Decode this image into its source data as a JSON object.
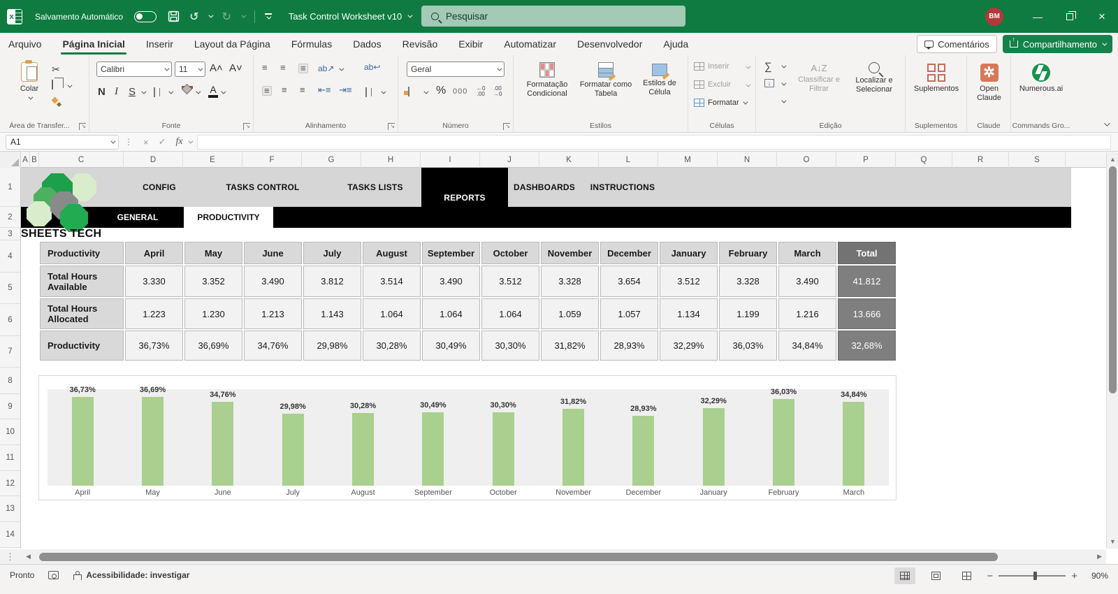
{
  "titlebar": {
    "autosave_label": "Salvamento Automático",
    "doc_title": "Task Control Worksheet v10",
    "search_placeholder": "Pesquisar",
    "avatar_initials": "BM"
  },
  "menubar": {
    "tabs": [
      "Arquivo",
      "Página Inicial",
      "Inserir",
      "Layout da Página",
      "Fórmulas",
      "Dados",
      "Revisão",
      "Exibir",
      "Automatizar",
      "Desenvolvedor",
      "Ajuda"
    ],
    "active_tab": "Página Inicial",
    "comments_label": "Comentários",
    "share_label": "Compartilhamento"
  },
  "ribbon": {
    "clipboard": {
      "paste": "Colar",
      "group": "Área de Transfer..."
    },
    "font": {
      "name": "Calibri",
      "size": "11",
      "group": "Fonte"
    },
    "alignment": {
      "group": "Alinhamento"
    },
    "number": {
      "format": "Geral",
      "group": "Número"
    },
    "styles": {
      "b1": "Formatação Condicional",
      "b2": "Formatar como Tabela",
      "b3": "Estilos de Célula",
      "group": "Estilos"
    },
    "cells": {
      "insert": "Inserir",
      "delete": "Excluir",
      "format": "Formatar",
      "group": "Células"
    },
    "editing": {
      "sort": "Classificar e Filtrar",
      "find": "Localizar e Selecionar",
      "group": "Edição"
    },
    "addins": {
      "button": "Suplementos",
      "group": "Suplementos"
    },
    "claude": {
      "button": "Open Claude",
      "group": "Claude"
    },
    "numerous": {
      "button": "Numerous.ai",
      "group": "Commands Gro..."
    }
  },
  "formula_bar": {
    "name_box": "A1",
    "formula": ""
  },
  "grid": {
    "columns": [
      "A",
      "B",
      "C",
      "D",
      "E",
      "F",
      "G",
      "H",
      "I",
      "J",
      "K",
      "L",
      "M",
      "N",
      "O",
      "P",
      "Q",
      "R",
      "S"
    ],
    "rows": [
      "1",
      "2",
      "3",
      "4",
      "5",
      "6",
      "7",
      "8",
      "9",
      "10",
      "11",
      "12",
      "13",
      "14"
    ]
  },
  "nav": {
    "tabs": [
      "CONFIG",
      "TASKS CONTROL",
      "TASKS LISTS",
      "REPORTS",
      "DASHBOARDS",
      "INSTRUCTIONS"
    ],
    "active_tab": "REPORTS",
    "subtabs": [
      "GENERAL",
      "PRODUCTIVITY"
    ],
    "active_subtab": "PRODUCTIVITY",
    "brand": "SHEETS TECH"
  },
  "table": {
    "corner": "Productivity",
    "months": [
      "April",
      "May",
      "June",
      "July",
      "August",
      "September",
      "October",
      "November",
      "December",
      "January",
      "February",
      "March"
    ],
    "total_header": "Total",
    "rows": [
      {
        "label": "Total Hours Available",
        "values": [
          "3.330",
          "3.352",
          "3.490",
          "3.812",
          "3.514",
          "3.490",
          "3.512",
          "3.328",
          "3.654",
          "3.512",
          "3.328",
          "3.490"
        ],
        "total": "41.812"
      },
      {
        "label": "Total Hours Allocated",
        "values": [
          "1.223",
          "1.230",
          "1.213",
          "1.143",
          "1.064",
          "1.064",
          "1.064",
          "1.059",
          "1.057",
          "1.134",
          "1.199",
          "1.216"
        ],
        "total": "13.666"
      },
      {
        "label": "Productivity",
        "values": [
          "36,73%",
          "36,69%",
          "34,76%",
          "29,98%",
          "30,28%",
          "30,49%",
          "30,30%",
          "31,82%",
          "28,93%",
          "32,29%",
          "36,03%",
          "34,84%"
        ],
        "total": "32,68%"
      }
    ]
  },
  "chart_data": {
    "type": "bar",
    "title": "",
    "categories": [
      "April",
      "May",
      "June",
      "July",
      "August",
      "September",
      "October",
      "November",
      "December",
      "January",
      "February",
      "March"
    ],
    "values": [
      36.73,
      36.69,
      34.76,
      29.98,
      30.28,
      30.49,
      30.3,
      31.82,
      28.93,
      32.29,
      36.03,
      34.84
    ],
    "labels": [
      "36,73%",
      "36,69%",
      "34,76%",
      "29,98%",
      "30,28%",
      "30,49%",
      "30,30%",
      "31,82%",
      "28,93%",
      "32,29%",
      "36,03%",
      "34,84%"
    ],
    "xlabel": "",
    "ylabel": "",
    "ylim": [
      0,
      40
    ],
    "grid": false,
    "legend": false,
    "bar_color": "#a9d08e",
    "plot_bg": "#efefef"
  },
  "statusbar": {
    "ready": "Pronto",
    "accessibility": "Acessibilidade: investigar",
    "zoom_level": "90%"
  },
  "colors": {
    "excel_green": "#0f7b41",
    "share_green": "#16814b",
    "bar_green": "#a9d08e",
    "header_gray": "#d9d9d9",
    "total_gray": "#7f7f7f"
  }
}
